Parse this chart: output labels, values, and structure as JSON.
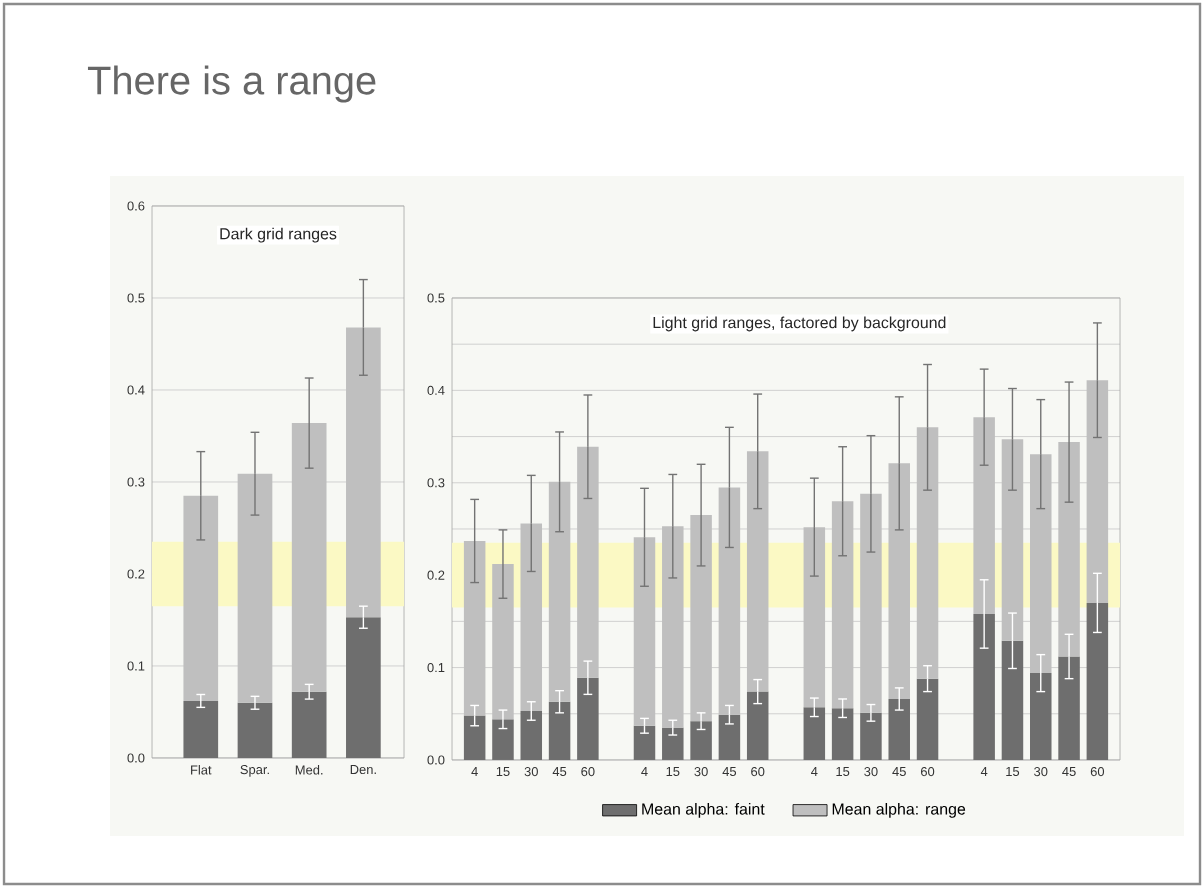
{
  "chart_data": [
    {
      "type": "bar",
      "title": "There is a range",
      "subtitle": "Dark grid ranges",
      "stacked": true,
      "grid": "y",
      "categories": [
        "Flat",
        "Spar.",
        "Med.",
        "Den."
      ],
      "series": [
        {
          "color": "#6e6e6e",
          "values": [
            0.062,
            0.06,
            0.072,
            0.153
          ],
          "errors": [
            0.007,
            0.007,
            0.008,
            0.012
          ]
        },
        {
          "color": "#bfbfbf",
          "values": [
            0.223,
            0.249,
            0.292,
            0.315
          ],
          "errors": [
            0.048,
            0.045,
            0.049,
            0.052
          ]
        }
      ],
      "ylim": [
        0,
        0.6
      ],
      "yticks": [
        {
          "value": 0,
          "label": "0.0"
        },
        {
          "value": 0.1,
          "label": "0.1"
        },
        {
          "value": 0.2,
          "label": "0.2"
        },
        {
          "value": 0.3,
          "label": "0.3"
        },
        {
          "value": 0.4,
          "label": "0.4"
        },
        {
          "value": 0.5,
          "label": "0.5"
        },
        {
          "value": 0.6,
          "label": "0.6"
        }
      ],
      "bands": [
        {
          "axis": "y",
          "from": 0.165,
          "to": 0.235,
          "color": "#fbf9c4"
        }
      ]
    },
    {
      "type": "bar",
      "title": "Light grid ranges, factored by background",
      "stacked": true,
      "grid": "y",
      "legend": "bottom",
      "categories": [
        "4",
        "15",
        "30",
        "45",
        "60",
        null,
        "4",
        "15",
        "30",
        "45",
        "60",
        null,
        "4",
        "15",
        "30",
        "45",
        "60",
        null,
        "4",
        "15",
        "30",
        "45",
        "60"
      ],
      "series": [
        {
          "name": "Mean alpha: faint",
          "color": "#6e6e6e",
          "values": [
            0.048,
            0.044,
            0.053,
            0.063,
            0.089,
            null,
            0.037,
            0.035,
            0.042,
            0.049,
            0.074,
            null,
            0.057,
            0.056,
            0.051,
            0.066,
            0.088,
            null,
            0.158,
            0.129,
            0.094,
            0.112,
            0.17
          ],
          "errors": [
            0.011,
            0.01,
            0.01,
            0.012,
            0.018,
            null,
            0.008,
            0.008,
            0.009,
            0.01,
            0.013,
            null,
            0.01,
            0.01,
            0.009,
            0.012,
            0.014,
            null,
            0.037,
            0.03,
            0.02,
            0.024,
            0.032
          ]
        },
        {
          "name": "Mean alpha: range",
          "color": "#bfbfbf",
          "values": [
            0.189,
            0.168,
            0.203,
            0.238,
            0.25,
            null,
            0.204,
            0.218,
            0.223,
            0.246,
            0.26,
            null,
            0.195,
            0.224,
            0.237,
            0.255,
            0.272,
            null,
            0.213,
            0.218,
            0.237,
            0.232,
            0.241
          ],
          "errors": [
            0.045,
            0.037,
            0.052,
            0.054,
            0.056,
            null,
            0.053,
            0.056,
            0.055,
            0.065,
            0.062,
            null,
            0.053,
            0.059,
            0.063,
            0.072,
            0.068,
            null,
            0.052,
            0.055,
            0.059,
            0.065,
            0.062
          ]
        }
      ],
      "ylim": [
        0,
        0.5
      ],
      "yticks": [
        {
          "value": 0,
          "label": "0.0"
        },
        {
          "value": 0.05,
          "label": null
        },
        {
          "value": 0.1,
          "label": "0.1"
        },
        {
          "value": 0.15,
          "label": null
        },
        {
          "value": 0.2,
          "label": "0.2"
        },
        {
          "value": 0.25,
          "label": null
        },
        {
          "value": 0.3,
          "label": "0.3"
        },
        {
          "value": 0.35,
          "label": null
        },
        {
          "value": 0.4,
          "label": "0.4"
        },
        {
          "value": 0.45,
          "label": null
        },
        {
          "value": 0.5,
          "label": "0.5"
        }
      ],
      "bands": [
        {
          "axis": "y",
          "from": 0.165,
          "to": 0.235,
          "color": "#fbf9c4"
        }
      ]
    }
  ]
}
